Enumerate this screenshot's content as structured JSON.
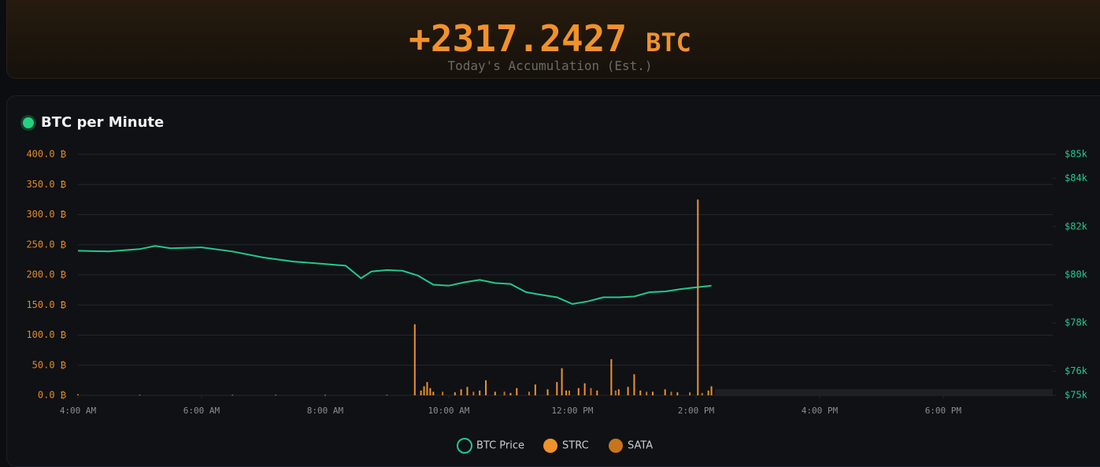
{
  "header": {
    "value": "+2317.2427",
    "unit": "BTC",
    "caption": "Today's Accumulation (Est.)"
  },
  "chart_data": {
    "type": "combo",
    "title": "BTC per Minute",
    "xlim": [
      4,
      19.9
    ],
    "xticks": [
      {
        "value": 4,
        "label": "4:00 AM"
      },
      {
        "value": 6,
        "label": "6:00 AM"
      },
      {
        "value": 8,
        "label": "8:00 AM"
      },
      {
        "value": 10,
        "label": "10:00 AM"
      },
      {
        "value": 12,
        "label": "12:00 PM"
      },
      {
        "value": 14,
        "label": "2:00 PM"
      },
      {
        "value": 16,
        "label": "4:00 PM"
      },
      {
        "value": 18,
        "label": "6:00 PM"
      }
    ],
    "ylim": [
      0,
      400
    ],
    "yticks": [
      {
        "value": 0,
        "label": "0.0 ₿"
      },
      {
        "value": 50,
        "label": "50.0 ₿"
      },
      {
        "value": 100,
        "label": "100.0 ₿"
      },
      {
        "value": 150,
        "label": "150.0 ₿"
      },
      {
        "value": 200,
        "label": "200.0 ₿"
      },
      {
        "value": 250,
        "label": "250.0 ₿"
      },
      {
        "value": 300,
        "label": "300.0 ₿"
      },
      {
        "value": 350,
        "label": "350.0 ₿"
      },
      {
        "value": 400,
        "label": "400.0 ₿"
      }
    ],
    "y2lim": [
      75000,
      85000
    ],
    "y2ticks": [
      {
        "value": 75000,
        "label": "$75k"
      },
      {
        "value": 76000,
        "label": "$76k"
      },
      {
        "value": 78000,
        "label": "$78k"
      },
      {
        "value": 80000,
        "label": "$80k"
      },
      {
        "value": 82000,
        "label": "$82k"
      },
      {
        "value": 84000,
        "label": "$84k"
      },
      {
        "value": 85000,
        "label": "$85k"
      }
    ],
    "grid": true,
    "series": [
      {
        "name": "BTC Price",
        "type": "line",
        "axis": "y2",
        "color": "#22c98a",
        "x": [
          4,
          4.5,
          5,
          5.25,
          5.5,
          6,
          6.5,
          7,
          7.5,
          8,
          8.33,
          8.58,
          8.75,
          9,
          9.25,
          9.5,
          9.75,
          10,
          10.25,
          10.5,
          10.75,
          11,
          11.25,
          11.5,
          11.75,
          12,
          12.25,
          12.5,
          12.75,
          13,
          13.25,
          13.5,
          13.75,
          14,
          14.25
        ],
        "values": [
          81000,
          80970,
          81070,
          81200,
          81100,
          81140,
          80970,
          80720,
          80550,
          80450,
          80380,
          79860,
          80140,
          80200,
          80170,
          79970,
          79590,
          79550,
          79690,
          79790,
          79660,
          79620,
          79280,
          79170,
          79070,
          78790,
          78900,
          79070,
          79070,
          79100,
          79280,
          79310,
          79410,
          79480,
          79550
        ]
      },
      {
        "name": "STRC",
        "type": "bar",
        "color": "#f0922b",
        "x": [
          9.45,
          9.55,
          9.6,
          9.65,
          9.7,
          9.75,
          10.1,
          10.2,
          10.3,
          10.5,
          10.6,
          10.75,
          11,
          11.1,
          11.4,
          11.6,
          11.75,
          11.83,
          11.9,
          12.1,
          12.2,
          12.4,
          12.63,
          12.75,
          12.9,
          13,
          13.1,
          13.3,
          13.5,
          13.7,
          14.03,
          14.2,
          14.25
        ],
        "values": [
          118,
          8,
          15,
          22,
          12,
          6,
          5,
          10,
          14,
          8,
          25,
          6,
          4,
          12,
          18,
          10,
          22,
          45,
          8,
          12,
          20,
          8,
          60,
          10,
          14,
          35,
          8,
          6,
          10,
          5,
          325,
          8,
          15
        ]
      },
      {
        "name": "SATA",
        "type": "bar",
        "color": "#c8741a",
        "x": [
          4,
          5,
          6.5,
          7.2,
          8,
          9,
          9.9,
          10.4,
          10.9,
          11.3,
          11.95,
          12.3,
          12.7,
          13.2,
          13.6,
          13.9,
          14.1
        ],
        "values": [
          2,
          1,
          1,
          1,
          1,
          1,
          6,
          6,
          6,
          6,
          8,
          12,
          8,
          6,
          6,
          5,
          4
        ]
      }
    ]
  }
}
